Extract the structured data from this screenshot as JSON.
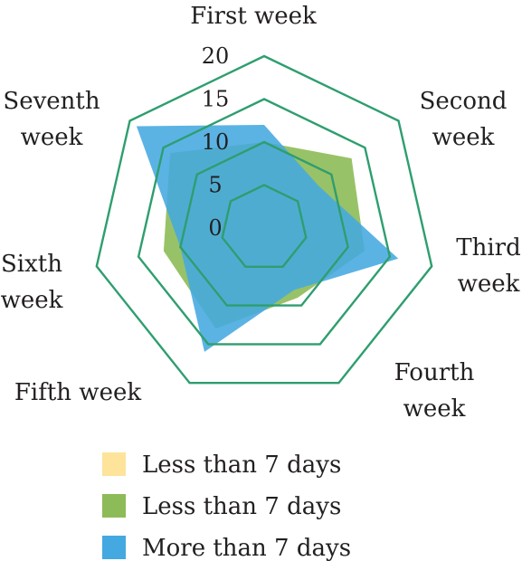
{
  "chart_data": {
    "type": "radar",
    "title": "",
    "categories": [
      [
        "First week"
      ],
      [
        "Second",
        "week"
      ],
      [
        "Third",
        "week"
      ],
      [
        "Fourth",
        "week"
      ],
      [
        "Fifth week"
      ],
      [
        "Sixth",
        "week"
      ],
      [
        "Seventh",
        "week"
      ]
    ],
    "rlim": [
      0,
      20
    ],
    "ticks": [
      0,
      5,
      10,
      15,
      20
    ],
    "grid": true,
    "grid_color": "#2e9e6f",
    "legend_position": "bottom",
    "series": [
      {
        "name": "Less than 7 days",
        "color": "#fde49a",
        "opacity": 0.75,
        "values": [
          5,
          7,
          9,
          6,
          7,
          6,
          7
        ]
      },
      {
        "name": "Less than 7 days",
        "color": "#8dbb57",
        "opacity": 0.9,
        "values": [
          10,
          13,
          12,
          9,
          13,
          12,
          14
        ]
      },
      {
        "name": "More than 7 days",
        "color": "#44a9e0",
        "opacity": 0.88,
        "values": [
          12,
          8,
          16,
          8,
          16,
          10,
          19
        ]
      }
    ]
  }
}
